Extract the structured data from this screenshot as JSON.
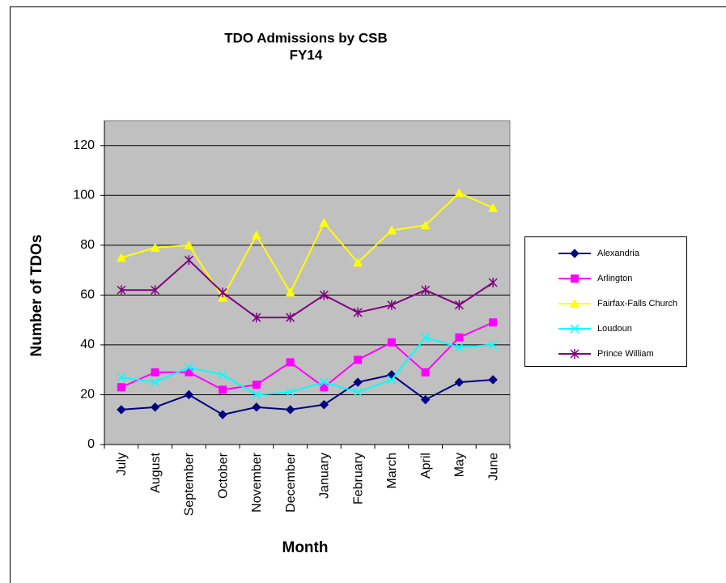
{
  "chart_data": {
    "type": "line",
    "title": "TDO Admissions by CSB",
    "subtitle": "FY14",
    "x_label": "Month",
    "y_label": "Number of TDOs",
    "categories": [
      "July",
      "August",
      "September",
      "October",
      "November",
      "December",
      "January",
      "February",
      "March",
      "April",
      "May",
      "June"
    ],
    "series": [
      {
        "name": "Alexandria",
        "color": "#000080",
        "marker": "diamond",
        "values": [
          14,
          15,
          20,
          12,
          15,
          14,
          16,
          25,
          28,
          18,
          25,
          26
        ]
      },
      {
        "name": "Arlington",
        "color": "#ff00ff",
        "marker": "square",
        "values": [
          23,
          29,
          29,
          22,
          24,
          33,
          23,
          34,
          41,
          29,
          43,
          49
        ]
      },
      {
        "name": "Fairfax-Falls Church",
        "color": "#ffff00",
        "marker": "triangle",
        "values": [
          75,
          79,
          80,
          59,
          84,
          61,
          89,
          73,
          86,
          88,
          101,
          95
        ]
      },
      {
        "name": "Loudoun",
        "color": "#00ffff",
        "marker": "x",
        "values": [
          27,
          25,
          31,
          28,
          20,
          21,
          25,
          21,
          26,
          43,
          39,
          40
        ]
      },
      {
        "name": "Prince William",
        "color": "#800080",
        "marker": "star",
        "values": [
          62,
          62,
          74,
          61,
          51,
          51,
          60,
          53,
          56,
          62,
          56,
          65
        ]
      }
    ],
    "ylim": [
      0,
      130
    ],
    "yticks": [
      0,
      20,
      40,
      60,
      80,
      100,
      120
    ],
    "grid": true,
    "legend": "right"
  }
}
